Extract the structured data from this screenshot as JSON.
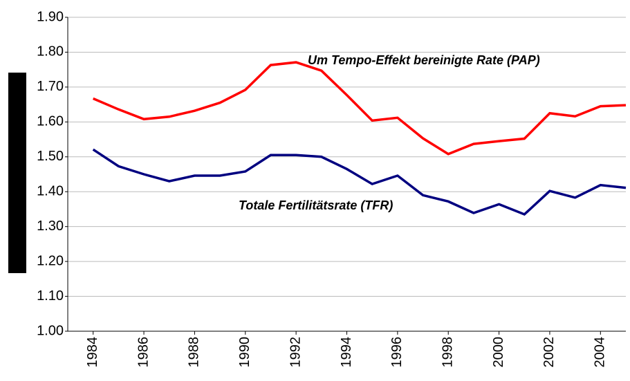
{
  "chart_data": {
    "type": "line",
    "x": [
      1984,
      1985,
      1986,
      1987,
      1988,
      1989,
      1990,
      1991,
      1992,
      1993,
      1994,
      1995,
      1996,
      1997,
      1998,
      1999,
      2000,
      2001,
      2002,
      2003,
      2004,
      2005
    ],
    "series": [
      {
        "name": "Um Tempo-Effekt bereinigte Rate (PAP)",
        "color": "#ff0000",
        "values": [
          1.667,
          1.636,
          1.608,
          1.615,
          1.632,
          1.655,
          1.692,
          1.763,
          1.771,
          1.747,
          1.677,
          1.604,
          1.612,
          1.553,
          1.508,
          1.537,
          1.545,
          1.552,
          1.625,
          1.616,
          1.645,
          1.648
        ]
      },
      {
        "name": "Totale Fertilitätsrate (TFR)",
        "color": "#000080",
        "values": [
          1.521,
          1.473,
          1.45,
          1.43,
          1.446,
          1.446,
          1.458,
          1.505,
          1.505,
          1.5,
          1.465,
          1.422,
          1.446,
          1.39,
          1.372,
          1.339,
          1.364,
          1.335,
          1.402,
          1.383,
          1.419,
          1.411
        ]
      }
    ],
    "xlim": [
      1983,
      2005
    ],
    "xticks": [
      1984,
      1986,
      1988,
      1990,
      1992,
      1994,
      1996,
      1998,
      2000,
      2002,
      2004
    ],
    "ylim": [
      1.0,
      1.9
    ],
    "yticks": [
      {
        "value": 1.0,
        "label": "1.00"
      },
      {
        "value": 1.1,
        "label": "1.10"
      },
      {
        "value": 1.2,
        "label": "1.20"
      },
      {
        "value": 1.3,
        "label": "1.30"
      },
      {
        "value": 1.4,
        "label": "1.40"
      },
      {
        "value": 1.5,
        "label": "1.50"
      },
      {
        "value": 1.6,
        "label": "1.60"
      },
      {
        "value": 1.7,
        "label": "1.70"
      },
      {
        "value": 1.8,
        "label": "1.80"
      },
      {
        "value": 1.9,
        "label": "1.90"
      }
    ],
    "grid": true
  }
}
